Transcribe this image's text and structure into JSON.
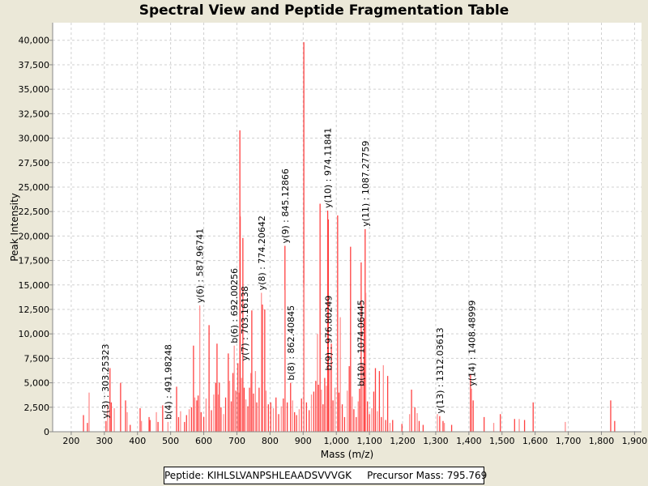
{
  "chart_data": {
    "type": "bar",
    "title": "Spectral View and Peptide Fragmentation Table",
    "xlabel": "Mass (m/z)",
    "ylabel": "Peak Intensity",
    "xlim": [
      144,
      1921
    ],
    "ylim": [
      0,
      41800
    ],
    "grid": true,
    "x_ticks": [
      200,
      300,
      400,
      500,
      600,
      700,
      800,
      900,
      1000,
      1100,
      1200,
      1300,
      1400,
      1500,
      1600,
      1700,
      1800,
      1900
    ],
    "x_tick_labels": [
      "200",
      "300",
      "400",
      "500",
      "600",
      "700",
      "800",
      "900",
      "1,000",
      "1,100",
      "1,200",
      "1,300",
      "1,400",
      "1,500",
      "1,600",
      "1,700",
      "1,800",
      "1,900"
    ],
    "y_ticks": [
      0,
      2500,
      5000,
      7500,
      10000,
      12500,
      15000,
      17500,
      20000,
      22500,
      25000,
      27500,
      30000,
      32500,
      35000,
      37500,
      40000
    ],
    "y_tick_labels": [
      "0",
      "2,500",
      "5,000",
      "7,500",
      "10,000",
      "12,500",
      "15,000",
      "17,500",
      "20,000",
      "22,500",
      "25,000",
      "27,500",
      "30,000",
      "32,500",
      "35,000",
      "37,500",
      "40,000"
    ],
    "peaks": [
      [
        237,
        1700
      ],
      [
        254,
        4000
      ],
      [
        249,
        900
      ],
      [
        305,
        1100
      ],
      [
        310,
        2800
      ],
      [
        317,
        6500
      ],
      [
        321,
        3000
      ],
      [
        330,
        2400
      ],
      [
        349,
        5000
      ],
      [
        364,
        3200
      ],
      [
        369,
        2000
      ],
      [
        378,
        700
      ],
      [
        408,
        2400
      ],
      [
        412,
        1100
      ],
      [
        435,
        1500
      ],
      [
        438,
        1200
      ],
      [
        457,
        2000
      ],
      [
        462,
        1000
      ],
      [
        476,
        2700
      ],
      [
        492,
        1000
      ],
      [
        518,
        4600
      ],
      [
        524,
        1500
      ],
      [
        530,
        2100
      ],
      [
        542,
        1000
      ],
      [
        548,
        1700
      ],
      [
        556,
        2300
      ],
      [
        563,
        2500
      ],
      [
        569,
        8800
      ],
      [
        573,
        3500
      ],
      [
        579,
        3200
      ],
      [
        583,
        3700
      ],
      [
        588,
        12900
      ],
      [
        592,
        2000
      ],
      [
        600,
        1500
      ],
      [
        607,
        3400
      ],
      [
        616,
        10900
      ],
      [
        623,
        2200
      ],
      [
        630,
        3800
      ],
      [
        636,
        5000
      ],
      [
        640,
        9000
      ],
      [
        644,
        3800
      ],
      [
        647,
        5000
      ],
      [
        652,
        2500
      ],
      [
        660,
        1800
      ],
      [
        666,
        3500
      ],
      [
        674,
        8000
      ],
      [
        678,
        5200
      ],
      [
        683,
        3100
      ],
      [
        688,
        6000
      ],
      [
        692,
        8800
      ],
      [
        697,
        4200
      ],
      [
        703,
        7000
      ],
      [
        706,
        4000
      ],
      [
        709,
        30800
      ],
      [
        710,
        22000
      ],
      [
        714,
        5500
      ],
      [
        718,
        19800
      ],
      [
        722,
        4500
      ],
      [
        727,
        3300
      ],
      [
        733,
        2600
      ],
      [
        738,
        4500
      ],
      [
        742,
        6000
      ],
      [
        745,
        12400
      ],
      [
        750,
        3900
      ],
      [
        756,
        6200
      ],
      [
        760,
        3000
      ],
      [
        767,
        4500
      ],
      [
        774,
        14200
      ],
      [
        777,
        13000
      ],
      [
        784,
        12500
      ],
      [
        788,
        4200
      ],
      [
        795,
        2800
      ],
      [
        802,
        3000
      ],
      [
        810,
        2400
      ],
      [
        818,
        3500
      ],
      [
        826,
        1800
      ],
      [
        834,
        2600
      ],
      [
        840,
        3400
      ],
      [
        845,
        19000
      ],
      [
        846,
        14500
      ],
      [
        852,
        3000
      ],
      [
        862,
        5000
      ],
      [
        868,
        3200
      ],
      [
        874,
        2000
      ],
      [
        880,
        1700
      ],
      [
        888,
        2300
      ],
      [
        895,
        3400
      ],
      [
        902,
        39800
      ],
      [
        903,
        15000
      ],
      [
        910,
        3000
      ],
      [
        918,
        2200
      ],
      [
        925,
        3800
      ],
      [
        932,
        4100
      ],
      [
        938,
        5200
      ],
      [
        943,
        10000
      ],
      [
        946,
        4800
      ],
      [
        951,
        23300
      ],
      [
        955,
        4300
      ],
      [
        960,
        2800
      ],
      [
        965,
        5500
      ],
      [
        970,
        4700
      ],
      [
        974,
        22600
      ],
      [
        976,
        21700
      ],
      [
        980,
        6500
      ],
      [
        985,
        9000
      ],
      [
        990,
        3200
      ],
      [
        996,
        4500
      ],
      [
        1004,
        22100
      ],
      [
        1008,
        4000
      ],
      [
        1012,
        11700
      ],
      [
        1018,
        2800
      ],
      [
        1025,
        1500
      ],
      [
        1033,
        4200
      ],
      [
        1039,
        6700
      ],
      [
        1043,
        18900
      ],
      [
        1048,
        3600
      ],
      [
        1053,
        2300
      ],
      [
        1060,
        1500
      ],
      [
        1066,
        3100
      ],
      [
        1070,
        4400
      ],
      [
        1075,
        17300
      ],
      [
        1080,
        6900
      ],
      [
        1084,
        11600
      ],
      [
        1087,
        20700
      ],
      [
        1089,
        14200
      ],
      [
        1094,
        3100
      ],
      [
        1100,
        1800
      ],
      [
        1107,
        2400
      ],
      [
        1113,
        4100
      ],
      [
        1118,
        6500
      ],
      [
        1124,
        2100
      ],
      [
        1130,
        6200
      ],
      [
        1136,
        1500
      ],
      [
        1142,
        6800
      ],
      [
        1149,
        1200
      ],
      [
        1155,
        5700
      ],
      [
        1162,
        900
      ],
      [
        1170,
        1200
      ],
      [
        1198,
        800
      ],
      [
        1221,
        1800
      ],
      [
        1227,
        4300
      ],
      [
        1237,
        2500
      ],
      [
        1244,
        1900
      ],
      [
        1250,
        1100
      ],
      [
        1262,
        700
      ],
      [
        1305,
        1800
      ],
      [
        1312,
        1600
      ],
      [
        1322,
        1100
      ],
      [
        1326,
        900
      ],
      [
        1348,
        700
      ],
      [
        1405,
        5900
      ],
      [
        1408,
        4400
      ],
      [
        1413,
        3200
      ],
      [
        1446,
        1500
      ],
      [
        1475,
        900
      ],
      [
        1495,
        1800
      ],
      [
        1538,
        1300
      ],
      [
        1552,
        1300
      ],
      [
        1568,
        1200
      ],
      [
        1594,
        3000
      ],
      [
        1691,
        1000
      ],
      [
        1828,
        3200
      ],
      [
        1840,
        1100
      ]
    ],
    "annotations": [
      {
        "label": "y(3) : 303.25323",
        "mass": 303.25,
        "intensity": 1100
      },
      {
        "label": "b(4) : 491.98248",
        "mass": 491.98,
        "intensity": 1000
      },
      {
        "label": "y(6) : 587.96741",
        "mass": 587.97,
        "intensity": 12900
      },
      {
        "label": "b(6) : 692.00256",
        "mass": 692.0,
        "intensity": 8800
      },
      {
        "label": "y(7) : 703.16138",
        "mass": 703.16,
        "intensity": 7000
      },
      {
        "label": "y(8) : 774.20642",
        "mass": 774.21,
        "intensity": 14200
      },
      {
        "label": "y(9) : 845.12866",
        "mass": 845.13,
        "intensity": 19000
      },
      {
        "label": "b(8) : 862.40845",
        "mass": 862.41,
        "intensity": 5000
      },
      {
        "label": "y(10) : 974.11841",
        "mass": 974.12,
        "intensity": 22600
      },
      {
        "label": "b(9) : 976.80249",
        "mass": 976.8,
        "intensity": 6000
      },
      {
        "label": "b(10) : 1074.06445",
        "mass": 1074.06,
        "intensity": 4400
      },
      {
        "label": "y(11) : 1087.27759",
        "mass": 1087.28,
        "intensity": 20700
      },
      {
        "label": "y(13) : 1312.03613",
        "mass": 1312.04,
        "intensity": 1600
      },
      {
        "label": "y(14) : 1408.48999",
        "mass": 1408.49,
        "intensity": 4400
      }
    ],
    "colors": {
      "peak": "#ff4040",
      "peak_light": "#ff9090",
      "grid": "#d0d0d0"
    }
  },
  "legend": {
    "peptide_label": "Peptide: KIHLSLVANPSHLEAADSVVVGK",
    "precursor_label": "Precursor Mass: 795.769"
  }
}
